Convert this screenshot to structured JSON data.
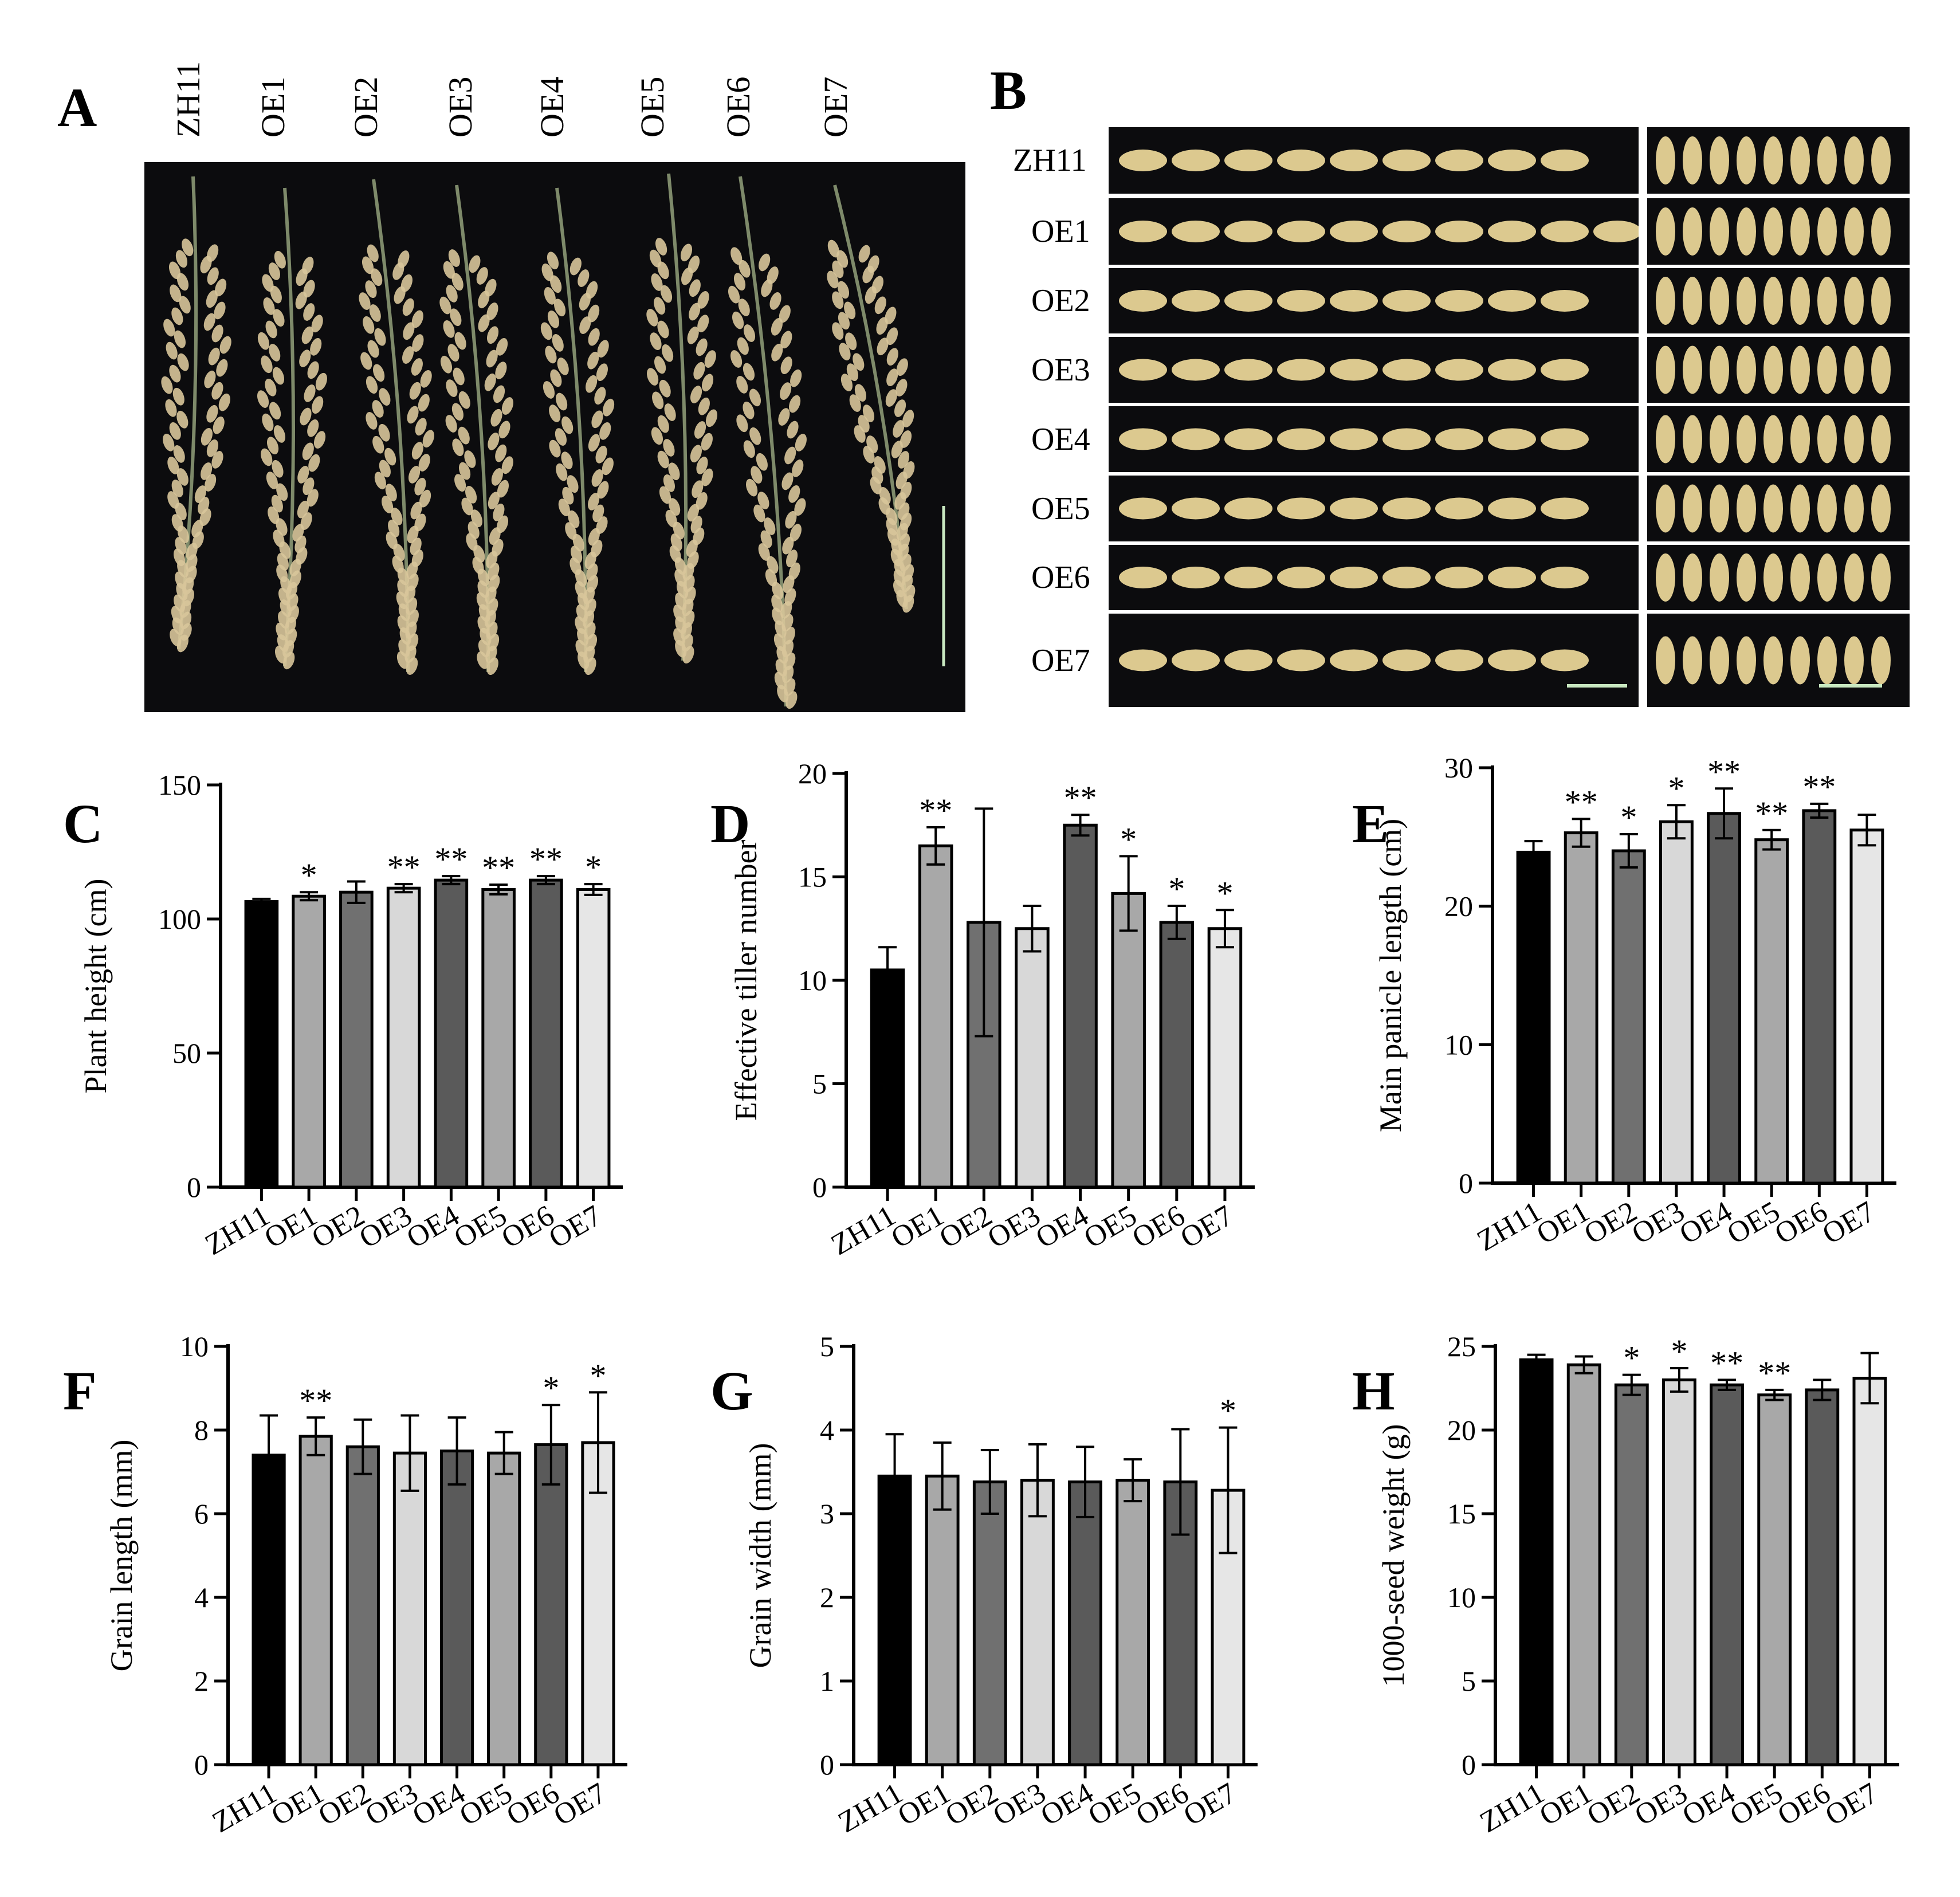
{
  "panels": {
    "A": {
      "letter": "A",
      "lines": [
        "ZH11",
        "OE1",
        "OE2",
        "OE3",
        "OE4",
        "OE5",
        "OE6",
        "OE7"
      ]
    },
    "B": {
      "letter": "B",
      "lines": [
        "ZH11",
        "OE1",
        "OE2",
        "OE3",
        "OE4",
        "OE5",
        "OE6",
        "OE7"
      ]
    }
  },
  "colors": {
    "photo_background": "#0c0c0e",
    "panicle": "#d8c59a",
    "panicle_stem": "#7e8a6a",
    "grain": "#dcc98f",
    "scale_bar": "#c8e8c0"
  },
  "chart_data": [
    {
      "letter": "C",
      "type": "bar",
      "categories": [
        "ZH11",
        "OE1",
        "OE2",
        "OE3",
        "OE4",
        "OE5",
        "OE6",
        "OE7"
      ],
      "values": [
        106.5,
        108.5,
        110,
        111.5,
        114.5,
        111,
        114.5,
        111
      ],
      "errors": [
        1,
        1.5,
        4,
        1.5,
        1.5,
        1.8,
        1.5,
        2
      ],
      "significance": [
        "",
        "*",
        "",
        "**",
        "**",
        "**",
        "**",
        "*"
      ],
      "ylabel": "Plant height (cm)",
      "ylim": [
        0,
        150
      ],
      "yticks": [
        0,
        50,
        100,
        150
      ],
      "bar_colors": [
        "#000000",
        "#a8a8a8",
        "#707070",
        "#d8d8d8",
        "#5a5a5a",
        "#a8a8a8",
        "#5a5a5a",
        "#e6e6e6"
      ]
    },
    {
      "letter": "D",
      "type": "bar",
      "categories": [
        "ZH11",
        "OE1",
        "OE2",
        "OE3",
        "OE4",
        "OE5",
        "OE6",
        "OE7"
      ],
      "values": [
        10.5,
        16.5,
        12.8,
        12.5,
        17.5,
        14.2,
        12.8,
        12.5
      ],
      "errors": [
        1.1,
        0.9,
        5.5,
        1.1,
        0.5,
        1.8,
        0.8,
        0.9
      ],
      "significance": [
        "",
        "**",
        "",
        "",
        "**",
        "*",
        "*",
        "*"
      ],
      "ylabel": "Effective tiller number",
      "ylim": [
        0,
        20
      ],
      "yticks": [
        0,
        5,
        10,
        15,
        20
      ],
      "bar_colors": [
        "#000000",
        "#a8a8a8",
        "#707070",
        "#d8d8d8",
        "#5a5a5a",
        "#a8a8a8",
        "#5a5a5a",
        "#e6e6e6"
      ]
    },
    {
      "letter": "E",
      "type": "bar",
      "categories": [
        "ZH11",
        "OE1",
        "OE2",
        "OE3",
        "OE4",
        "OE5",
        "OE6",
        "OE7"
      ],
      "values": [
        23.9,
        25.3,
        24.0,
        26.1,
        26.7,
        24.8,
        26.9,
        25.5
      ],
      "errors": [
        0.8,
        1.0,
        1.2,
        1.2,
        1.8,
        0.7,
        0.5,
        1.1
      ],
      "significance": [
        "",
        "**",
        "*",
        "*",
        "**",
        "**",
        "**",
        ""
      ],
      "ylabel": "Main panicle length (cm)",
      "ylim": [
        0,
        30
      ],
      "yticks": [
        0,
        10,
        20,
        30
      ],
      "bar_colors": [
        "#000000",
        "#a8a8a8",
        "#707070",
        "#d8d8d8",
        "#5a5a5a",
        "#a8a8a8",
        "#5a5a5a",
        "#e6e6e6"
      ]
    },
    {
      "letter": "F",
      "type": "bar",
      "categories": [
        "ZH11",
        "OE1",
        "OE2",
        "OE3",
        "OE4",
        "OE5",
        "OE6",
        "OE7"
      ],
      "values": [
        7.4,
        7.85,
        7.6,
        7.45,
        7.5,
        7.45,
        7.65,
        7.7
      ],
      "errors": [
        0.95,
        0.45,
        0.65,
        0.9,
        0.8,
        0.5,
        0.95,
        1.2
      ],
      "significance": [
        "",
        "**",
        "",
        "",
        "",
        "",
        "*",
        "*"
      ],
      "ylabel": "Grain length (mm)",
      "ylim": [
        0,
        10
      ],
      "yticks": [
        0,
        2,
        4,
        6,
        8,
        10
      ],
      "bar_colors": [
        "#000000",
        "#a8a8a8",
        "#707070",
        "#d8d8d8",
        "#5a5a5a",
        "#a8a8a8",
        "#5a5a5a",
        "#e6e6e6"
      ]
    },
    {
      "letter": "G",
      "type": "bar",
      "categories": [
        "ZH11",
        "OE1",
        "OE2",
        "OE3",
        "OE4",
        "OE5",
        "OE6",
        "OE7"
      ],
      "values": [
        3.45,
        3.45,
        3.38,
        3.4,
        3.38,
        3.4,
        3.38,
        3.28
      ],
      "errors": [
        0.5,
        0.4,
        0.38,
        0.43,
        0.42,
        0.25,
        0.63,
        0.75
      ],
      "significance": [
        "",
        "",
        "",
        "",
        "",
        "",
        "",
        "*"
      ],
      "ylabel": "Grain width (mm)",
      "ylim": [
        0,
        5
      ],
      "yticks": [
        0,
        1,
        2,
        3,
        4,
        5
      ],
      "bar_colors": [
        "#000000",
        "#a8a8a8",
        "#707070",
        "#d8d8d8",
        "#5a5a5a",
        "#a8a8a8",
        "#5a5a5a",
        "#e6e6e6"
      ]
    },
    {
      "letter": "H",
      "type": "bar",
      "categories": [
        "ZH11",
        "OE1",
        "OE2",
        "OE3",
        "OE4",
        "OE5",
        "OE6",
        "OE7"
      ],
      "values": [
        24.2,
        23.9,
        22.7,
        23.0,
        22.7,
        22.1,
        22.4,
        23.1
      ],
      "errors": [
        0.3,
        0.5,
        0.6,
        0.7,
        0.3,
        0.3,
        0.6,
        1.5
      ],
      "significance": [
        "",
        "",
        "*",
        "*",
        "**",
        "**",
        "",
        ""
      ],
      "ylabel": "1000-seed weight (g)",
      "ylim": [
        0,
        25
      ],
      "yticks": [
        0,
        5,
        10,
        15,
        20,
        25
      ],
      "bar_colors": [
        "#000000",
        "#a8a8a8",
        "#707070",
        "#d8d8d8",
        "#5a5a5a",
        "#a8a8a8",
        "#5a5a5a",
        "#e6e6e6"
      ]
    }
  ]
}
